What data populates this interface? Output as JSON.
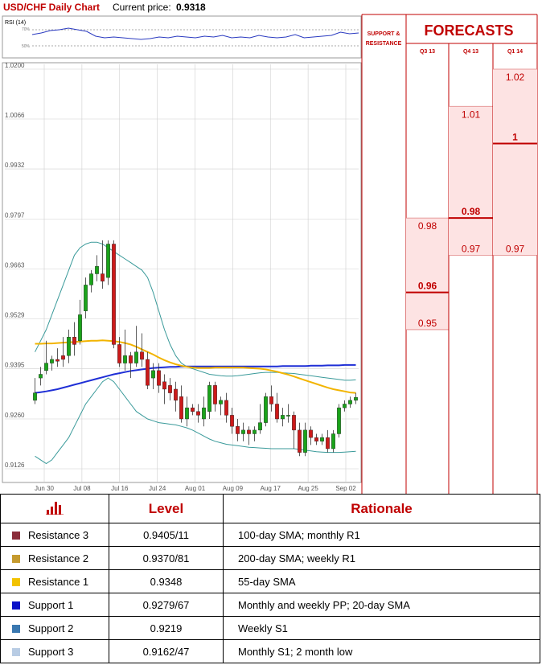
{
  "header": {
    "title": "USD/CHF Daily Chart",
    "price_label": "Current price:",
    "price_value": "0.9318"
  },
  "rsi": {
    "label": "RSI (14)",
    "ticks": [
      "70%",
      "50%"
    ],
    "values": [
      64,
      66,
      69,
      70,
      72,
      70,
      68,
      62,
      60,
      61,
      60,
      59,
      58,
      59,
      61,
      60,
      62,
      61,
      60,
      62,
      61,
      63,
      60,
      61,
      60,
      63,
      61,
      60,
      61,
      64,
      60,
      61,
      62,
      63,
      67,
      65,
      66
    ]
  },
  "panel": {
    "sr_title": [
      "SUPPORT &",
      "RESISTANCE"
    ],
    "forecast_title": "FORECASTS",
    "quarters": [
      "Q3 13",
      "Q4 13",
      "Q1 14"
    ]
  },
  "colors": {
    "up": "#1aa31a",
    "down": "#cc1a1a",
    "sma200": "#1f2fd6",
    "sma55": "#f2b400",
    "bands": "#3a9a9a",
    "forecast_red": "#c00000",
    "forecast_fill": "#fde3e3"
  },
  "chart_data": {
    "type": "candlestick",
    "title": "USD/CHF Daily Chart",
    "y_ticks": [
      "1.0200",
      "1.0066",
      "0.9932",
      "0.9797",
      "0.9663",
      "0.9529",
      "0.9395",
      "0.9260",
      "0.9126"
    ],
    "ylim": [
      0.9126,
      1.02
    ],
    "x_ticks": [
      "Jun 30",
      "Jul 08",
      "Jul 16",
      "Jul 24",
      "Aug 01",
      "Aug 09",
      "Aug 17",
      "Aug 25",
      "Sep 02"
    ],
    "candles": [
      [
        0.931,
        0.937,
        0.933,
        0.93
      ],
      [
        0.937,
        0.94,
        0.938,
        0.935
      ],
      [
        0.939,
        0.947,
        0.941,
        0.938
      ],
      [
        0.941,
        0.943,
        0.942,
        0.939
      ],
      [
        0.942,
        0.945,
        0.9415,
        0.94
      ],
      [
        0.943,
        0.948,
        0.942,
        0.94
      ],
      [
        0.943,
        0.95,
        0.948,
        0.941
      ],
      [
        0.948,
        0.952,
        0.946,
        0.943
      ],
      [
        0.947,
        0.958,
        0.954,
        0.946
      ],
      [
        0.955,
        0.964,
        0.962,
        0.953
      ],
      [
        0.962,
        0.966,
        0.965,
        0.96
      ],
      [
        0.965,
        0.97,
        0.967,
        0.963
      ],
      [
        0.965,
        0.974,
        0.963,
        0.961
      ],
      [
        0.964,
        0.974,
        0.973,
        0.962
      ],
      [
        0.973,
        0.974,
        0.946,
        0.945
      ],
      [
        0.946,
        0.948,
        0.941,
        0.94
      ],
      [
        0.941,
        0.95,
        0.943,
        0.939
      ],
      [
        0.943,
        0.944,
        0.941,
        0.937
      ],
      [
        0.941,
        0.951,
        0.944,
        0.94
      ],
      [
        0.944,
        0.949,
        0.942,
        0.94
      ],
      [
        0.942,
        0.944,
        0.935,
        0.934
      ],
      [
        0.937,
        0.941,
        0.939,
        0.934
      ],
      [
        0.939,
        0.941,
        0.935,
        0.933
      ],
      [
        0.936,
        0.938,
        0.934,
        0.93
      ],
      [
        0.935,
        0.937,
        0.933,
        0.931
      ],
      [
        0.934,
        0.936,
        0.931,
        0.928
      ],
      [
        0.932,
        0.935,
        0.926,
        0.925
      ],
      [
        0.926,
        0.932,
        0.929,
        0.924
      ],
      [
        0.929,
        0.93,
        0.928,
        0.927
      ],
      [
        0.928,
        0.93,
        0.927,
        0.925
      ],
      [
        0.926,
        0.932,
        0.929,
        0.924
      ],
      [
        0.928,
        0.936,
        0.935,
        0.926
      ],
      [
        0.935,
        0.936,
        0.93,
        0.928
      ],
      [
        0.93,
        0.932,
        0.931,
        0.927
      ],
      [
        0.931,
        0.933,
        0.927,
        0.925
      ],
      [
        0.927,
        0.929,
        0.924,
        0.922
      ],
      [
        0.924,
        0.926,
        0.922,
        0.92
      ],
      [
        0.922,
        0.925,
        0.923,
        0.92
      ],
      [
        0.923,
        0.924,
        0.922,
        0.919
      ],
      [
        0.922,
        0.924,
        0.923,
        0.92
      ],
      [
        0.923,
        0.93,
        0.925,
        0.922
      ],
      [
        0.925,
        0.933,
        0.932,
        0.924
      ],
      [
        0.932,
        0.935,
        0.93,
        0.928
      ],
      [
        0.93,
        0.933,
        0.926,
        0.925
      ],
      [
        0.926,
        0.929,
        0.927,
        0.924
      ],
      [
        0.927,
        0.93,
        0.927,
        0.925
      ],
      [
        0.927,
        0.928,
        0.923,
        0.918
      ],
      [
        0.923,
        0.925,
        0.917,
        0.916
      ],
      [
        0.917,
        0.925,
        0.923,
        0.916
      ],
      [
        0.923,
        0.924,
        0.921,
        0.919
      ],
      [
        0.921,
        0.922,
        0.92,
        0.919
      ],
      [
        0.92,
        0.922,
        0.921,
        0.919
      ],
      [
        0.921,
        0.923,
        0.918,
        0.917
      ],
      [
        0.918,
        0.923,
        0.922,
        0.917
      ],
      [
        0.922,
        0.93,
        0.929,
        0.921
      ],
      [
        0.929,
        0.931,
        0.93,
        0.928
      ],
      [
        0.93,
        0.932,
        0.931,
        0.929
      ],
      [
        0.931,
        0.933,
        0.9318,
        0.93
      ]
    ],
    "sma200": [
      0.933,
      0.9332,
      0.9334,
      0.9337,
      0.934,
      0.9344,
      0.9348,
      0.9352,
      0.9356,
      0.936,
      0.9364,
      0.9368,
      0.9372,
      0.9376,
      0.938,
      0.9383,
      0.9386,
      0.9389,
      0.9391,
      0.9393,
      0.9395,
      0.9397,
      0.9398,
      0.9399,
      0.94,
      0.94,
      0.9401,
      0.9401,
      0.9401,
      0.9401,
      0.9401,
      0.9401,
      0.9401,
      0.9401,
      0.9401,
      0.9401,
      0.9401,
      0.9401,
      0.9401,
      0.9401,
      0.9401,
      0.9401,
      0.9401,
      0.9401,
      0.9402,
      0.9402,
      0.9402,
      0.9402,
      0.9402,
      0.9403,
      0.9403,
      0.9403,
      0.9404,
      0.9404,
      0.9404,
      0.9405,
      0.9405,
      0.9405
    ],
    "sma55": [
      0.9462,
      0.9462,
      0.9463,
      0.9463,
      0.9464,
      0.9465,
      0.9466,
      0.9467,
      0.9468,
      0.9469,
      0.947,
      0.947,
      0.9471,
      0.947,
      0.9469,
      0.9467,
      0.9464,
      0.946,
      0.9454,
      0.9447,
      0.944,
      0.9433,
      0.9425,
      0.9418,
      0.9412,
      0.9407,
      0.9403,
      0.94,
      0.9398,
      0.9397,
      0.9397,
      0.9397,
      0.9398,
      0.9398,
      0.9398,
      0.9398,
      0.9398,
      0.9398,
      0.9397,
      0.9396,
      0.9395,
      0.9393,
      0.939,
      0.9387,
      0.9383,
      0.9379,
      0.9374,
      0.9369,
      0.9364,
      0.9359,
      0.9354,
      0.9349,
      0.9344,
      0.934,
      0.9337,
      0.9334,
      0.9331,
      0.933
    ],
    "bb_upper": [
      0.944,
      0.947,
      0.95,
      0.954,
      0.958,
      0.962,
      0.966,
      0.97,
      0.972,
      0.973,
      0.9735,
      0.9735,
      0.973,
      0.972,
      0.971,
      0.97,
      0.969,
      0.968,
      0.967,
      0.966,
      0.964,
      0.96,
      0.955,
      0.95,
      0.946,
      0.943,
      0.941,
      0.94,
      0.9395,
      0.939,
      0.9385,
      0.938,
      0.9378,
      0.9376,
      0.9375,
      0.9375,
      0.9376,
      0.9378,
      0.938,
      0.9382,
      0.9384,
      0.9385,
      0.9385,
      0.9385,
      0.9384,
      0.9383,
      0.9382,
      0.938,
      0.9378,
      0.9376,
      0.9374,
      0.9372,
      0.937,
      0.9368,
      0.9366,
      0.9364,
      0.9364,
      0.9365
    ],
    "bb_lower": [
      0.916,
      0.915,
      0.914,
      0.915,
      0.917,
      0.919,
      0.921,
      0.924,
      0.927,
      0.93,
      0.932,
      0.934,
      0.936,
      0.937,
      0.936,
      0.934,
      0.932,
      0.93,
      0.928,
      0.927,
      0.926,
      0.9255,
      0.925,
      0.9248,
      0.9246,
      0.9244,
      0.924,
      0.9236,
      0.923,
      0.9222,
      0.9214,
      0.9206,
      0.92,
      0.9196,
      0.9192,
      0.919,
      0.9188,
      0.9186,
      0.9184,
      0.9183,
      0.9182,
      0.9181,
      0.918,
      0.918,
      0.918,
      0.918,
      0.918,
      0.9178,
      0.9176,
      0.9174,
      0.9172,
      0.9171,
      0.917,
      0.917,
      0.917,
      0.9171,
      0.9172,
      0.9173
    ],
    "levels": [
      {
        "name": "Resistance 3",
        "value": 0.9405,
        "label": "0.9405",
        "color": "#7a1f3d"
      },
      {
        "name": "Resistance 2",
        "value": 0.937,
        "label": "0.9370",
        "color": "#d4a96a"
      },
      {
        "name": "Resistance 1",
        "value": 0.9348,
        "label": "0.9348",
        "color": "#f2b400"
      },
      {
        "name": "Support 1",
        "value": 0.9279,
        "label": "0.9279",
        "color": "#1a1acc"
      },
      {
        "name": "Support 2",
        "value": 0.9219,
        "label": "0.9219",
        "color": "#3a6f9a"
      },
      {
        "name": "Support 3",
        "value": 0.9162,
        "label": "0.9162",
        "color": "#a9c1da"
      }
    ],
    "forecasts": [
      {
        "quarter": "Q3 13",
        "high": 0.98,
        "mid": 0.96,
        "low": 0.95,
        "labels": [
          "0.98",
          "0.96",
          "0.95"
        ]
      },
      {
        "quarter": "Q4 13",
        "high": 1.01,
        "mid": 0.98,
        "low": 0.97,
        "labels": [
          "1.01",
          "0.98",
          "0.97"
        ]
      },
      {
        "quarter": "Q1 14",
        "high": 1.02,
        "mid": 1.0,
        "low": 0.97,
        "labels": [
          "1.02",
          "1",
          "0.97"
        ]
      }
    ]
  },
  "table": {
    "headers": [
      "Level",
      "Rationale"
    ],
    "rows": [
      {
        "name": "Resistance 3",
        "level": "0.9405/11",
        "rationale": "100-day SMA; monthly R1",
        "color": "#8b2c3a"
      },
      {
        "name": "Resistance 2",
        "level": "0.9370/81",
        "rationale": "200-day SMA; weekly R1",
        "color": "#c59a2e"
      },
      {
        "name": "Resistance 1",
        "level": "0.9348",
        "rationale": "55-day SMA",
        "color": "#f2c200"
      },
      {
        "name": "Support 1",
        "level": "0.9279/67",
        "rationale": "Monthly and weekly PP; 20-day SMA",
        "color": "#0a12c8"
      },
      {
        "name": "Support 2",
        "level": "0.9219",
        "rationale": "Weekly S1",
        "color": "#3a78b0"
      },
      {
        "name": "Support 3",
        "level": "0.9162/47",
        "rationale": "Monthly S1; 2 month low",
        "color": "#b8cce4"
      }
    ]
  }
}
